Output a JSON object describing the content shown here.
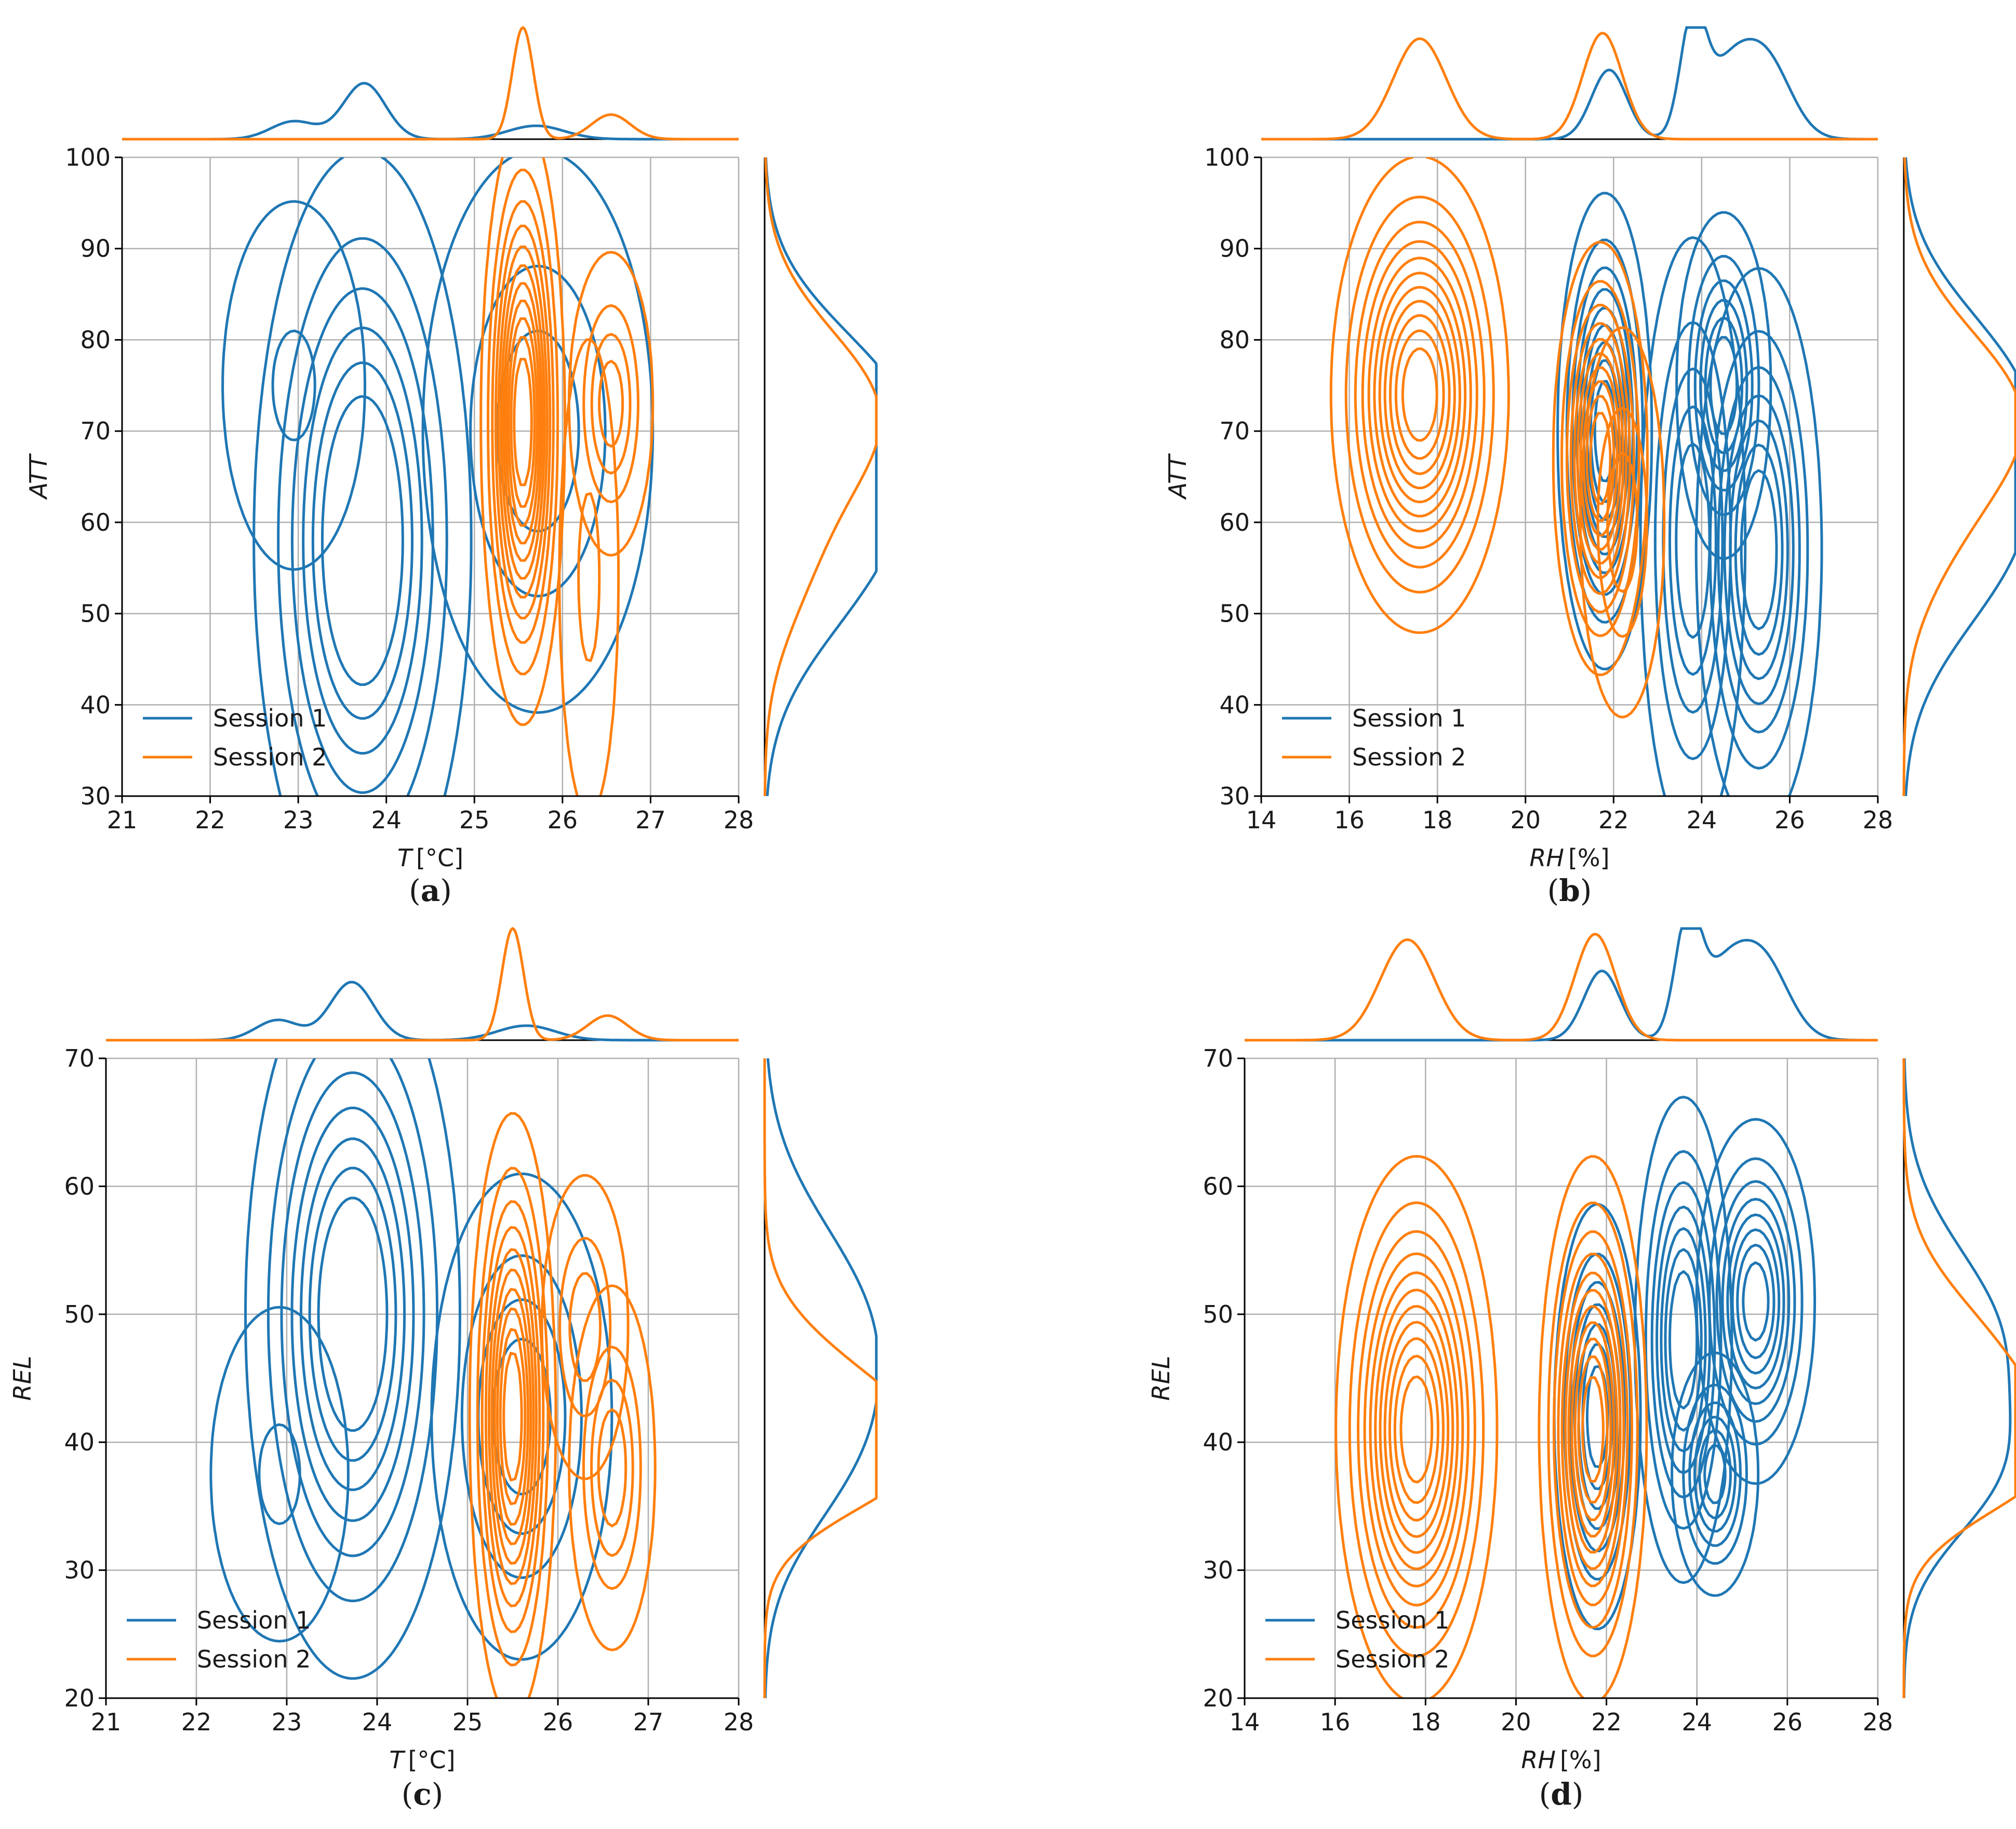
{
  "colors": {
    "session1": "#1f77b4",
    "session2": "#ff7f0e",
    "grid": "#b0b0b0",
    "axis": "#000000"
  },
  "legend": {
    "entries": [
      "Session 1",
      "Session 2"
    ],
    "placement": "lower-left"
  },
  "chart_data": [
    {
      "type": "contour",
      "panel_label": "a",
      "xlabel_var": "T",
      "xlabel_unit": "[°C]",
      "ylabel": "ATT",
      "xlim": [
        21,
        28
      ],
      "ylim": [
        30,
        100
      ],
      "xticks": [
        "21",
        "22",
        "23",
        "24",
        "25",
        "26",
        "27",
        "28"
      ],
      "yticks": [
        "30",
        "40",
        "50",
        "60",
        "70",
        "80",
        "90",
        "100"
      ],
      "grid": true,
      "series": [
        {
          "name": "Session 1",
          "modes": [
            {
              "x": 22.95,
              "y": 75,
              "sx": 0.34,
              "sy": 8.5,
              "levels": 2,
              "max_frac": 0.22
            },
            {
              "x": 23.73,
              "y": 58,
              "sx": 0.52,
              "sy": 18,
              "levels": 6,
              "max_frac": 0.32
            },
            {
              "x": 25.72,
              "y": 70,
              "sx": 0.55,
              "sy": 13,
              "levels": 3,
              "max_frac": 0.3
            }
          ],
          "marginal_x": [
            [
              22.95,
              0.26,
              0.16
            ],
            [
              23.75,
              0.24,
              0.5
            ],
            [
              25.7,
              0.32,
              0.12
            ]
          ],
          "marginal_y": [
            [
              57,
              10,
              0.9
            ],
            [
              73,
              9,
              1.0
            ]
          ]
        },
        {
          "name": "Session 2",
          "modes": [
            {
              "x": 25.55,
              "y": 71,
              "sx": 0.2,
              "sy": 14,
              "levels": 11,
              "max_frac": 0.12
            },
            {
              "x": 26.55,
              "y": 73,
              "sx": 0.2,
              "sy": 7,
              "levels": 4,
              "max_frac": 0.2
            },
            {
              "x": 26.3,
              "y": 54,
              "sx": 0.14,
              "sy": 11,
              "levels": 2,
              "max_frac": 0.3
            }
          ],
          "marginal_x": [
            [
              25.55,
              0.12,
              1.0
            ],
            [
              26.55,
              0.22,
              0.22
            ]
          ],
          "marginal_y": [
            [
              72,
              9,
              1.0
            ],
            [
              55,
              8,
              0.3
            ]
          ]
        }
      ]
    },
    {
      "type": "contour",
      "panel_label": "b",
      "xlabel_var": "RH",
      "xlabel_unit": "[%]",
      "ylabel": "ATT",
      "xlim": [
        14,
        28
      ],
      "ylim": [
        30,
        100
      ],
      "xticks": [
        "14",
        "16",
        "18",
        "20",
        "22",
        "24",
        "26",
        "28"
      ],
      "yticks": [
        "30",
        "40",
        "50",
        "60",
        "70",
        "80",
        "90",
        "100"
      ],
      "grid": true,
      "series": [
        {
          "name": "Session 1",
          "modes": [
            {
              "x": 21.8,
              "y": 70,
              "sx": 0.45,
              "sy": 11,
              "levels": 9,
              "max_frac": 0.12
            },
            {
              "x": 23.8,
              "y": 58,
              "sx": 0.5,
              "sy": 14,
              "levels": 5,
              "max_frac": 0.25
            },
            {
              "x": 24.5,
              "y": 75,
              "sx": 0.45,
              "sy": 8,
              "levels": 6,
              "max_frac": 0.2
            },
            {
              "x": 25.3,
              "y": 57,
              "sx": 0.6,
              "sy": 13,
              "levels": 7,
              "max_frac": 0.2
            }
          ],
          "marginal_x": [
            [
              21.9,
              0.4,
              0.62
            ],
            [
              23.8,
              0.28,
              1.0
            ],
            [
              24.6,
              0.55,
              0.6
            ],
            [
              25.5,
              0.55,
              0.65
            ]
          ],
          "marginal_y": [
            [
              58,
              10,
              0.9
            ],
            [
              75,
              9,
              0.85
            ]
          ]
        },
        {
          "name": "Session 2",
          "modes": [
            {
              "x": 17.6,
              "y": 74,
              "sx": 0.85,
              "sy": 11,
              "levels": 11,
              "max_frac": 0.1
            },
            {
              "x": 21.7,
              "y": 67,
              "sx": 0.45,
              "sy": 10,
              "levels": 10,
              "max_frac": 0.12
            },
            {
              "x": 22.2,
              "y": 60,
              "sx": 0.4,
              "sy": 9,
              "levels": 3,
              "max_frac": 0.3
            }
          ],
          "marginal_x": [
            [
              17.6,
              0.6,
              0.9
            ],
            [
              21.75,
              0.45,
              0.95
            ]
          ],
          "marginal_y": [
            [
              72,
              9,
              1.0
            ],
            [
              58,
              8,
              0.25
            ]
          ]
        }
      ]
    },
    {
      "type": "contour",
      "panel_label": "c",
      "xlabel_var": "T",
      "xlabel_unit": "[°C]",
      "ylabel": "REL",
      "xlim": [
        21,
        28
      ],
      "ylim": [
        20,
        70
      ],
      "xticks": [
        "21",
        "22",
        "23",
        "24",
        "25",
        "26",
        "27",
        "28"
      ],
      "yticks": [
        "20",
        "30",
        "40",
        "50",
        "60",
        "70"
      ],
      "grid": true,
      "series": [
        {
          "name": "Session 1",
          "modes": [
            {
              "x": 22.92,
              "y": 37.5,
              "sx": 0.32,
              "sy": 5.5,
              "levels": 2,
              "max_frac": 0.22
            },
            {
              "x": 23.73,
              "y": 50,
              "sx": 0.5,
              "sy": 12,
              "levels": 7,
              "max_frac": 0.25
            },
            {
              "x": 25.6,
              "y": 42,
              "sx": 0.42,
              "sy": 8,
              "levels": 4,
              "max_frac": 0.25
            }
          ],
          "marginal_x": [
            [
              22.9,
              0.24,
              0.18
            ],
            [
              23.72,
              0.24,
              0.52
            ],
            [
              25.65,
              0.32,
              0.13
            ]
          ],
          "marginal_y": [
            [
              49,
              8,
              0.9
            ],
            [
              38,
              6,
              0.45
            ]
          ]
        },
        {
          "name": "Session 2",
          "modes": [
            {
              "x": 25.5,
              "y": 42,
              "sx": 0.2,
              "sy": 10,
              "levels": 10,
              "max_frac": 0.12
            },
            {
              "x": 26.3,
              "y": 49,
              "sx": 0.2,
              "sy": 5,
              "levels": 3,
              "max_frac": 0.3
            },
            {
              "x": 26.6,
              "y": 38,
              "sx": 0.2,
              "sy": 6,
              "levels": 4,
              "max_frac": 0.25
            }
          ],
          "marginal_x": [
            [
              25.5,
              0.12,
              1.0
            ],
            [
              26.55,
              0.22,
              0.22
            ]
          ],
          "marginal_y": [
            [
              43,
              5,
              0.85
            ],
            [
              38,
              4,
              0.85
            ]
          ]
        }
      ]
    },
    {
      "type": "contour",
      "panel_label": "d",
      "xlabel_var": "RH",
      "xlabel_unit": "[%]",
      "ylabel": "REL",
      "xlim": [
        14,
        28
      ],
      "ylim": [
        20,
        70
      ],
      "xticks": [
        "14",
        "16",
        "18",
        "20",
        "22",
        "24",
        "26",
        "28"
      ],
      "yticks": [
        "20",
        "30",
        "40",
        "50",
        "60",
        "70"
      ],
      "grid": true,
      "series": [
        {
          "name": "Session 1",
          "modes": [
            {
              "x": 21.8,
              "y": 42,
              "sx": 0.4,
              "sy": 7,
              "levels": 7,
              "max_frac": 0.15
            },
            {
              "x": 23.7,
              "y": 48,
              "sx": 0.45,
              "sy": 8,
              "levels": 7,
              "max_frac": 0.2
            },
            {
              "x": 24.4,
              "y": 37.5,
              "sx": 0.4,
              "sy": 4,
              "levels": 6,
              "max_frac": 0.15
            },
            {
              "x": 25.3,
              "y": 51,
              "sx": 0.55,
              "sy": 6,
              "levels": 8,
              "max_frac": 0.12
            }
          ],
          "marginal_x": [
            [
              21.9,
              0.4,
              0.62
            ],
            [
              23.8,
              0.28,
              1.0
            ],
            [
              24.6,
              0.55,
              0.6
            ],
            [
              25.5,
              0.55,
              0.65
            ]
          ],
          "marginal_y": [
            [
              48,
              7,
              0.85
            ],
            [
              37,
              5,
              0.6
            ]
          ]
        },
        {
          "name": "Session 2",
          "modes": [
            {
              "x": 17.8,
              "y": 41,
              "sx": 0.75,
              "sy": 9,
              "levels": 11,
              "max_frac": 0.1
            },
            {
              "x": 21.7,
              "y": 41,
              "sx": 0.5,
              "sy": 9,
              "levels": 11,
              "max_frac": 0.1
            }
          ],
          "marginal_x": [
            [
              17.6,
              0.6,
              0.9
            ],
            [
              21.75,
              0.45,
              0.95
            ]
          ],
          "marginal_y": [
            [
              45,
              6,
              0.9
            ],
            [
              38,
              4,
              0.85
            ]
          ]
        }
      ]
    }
  ]
}
